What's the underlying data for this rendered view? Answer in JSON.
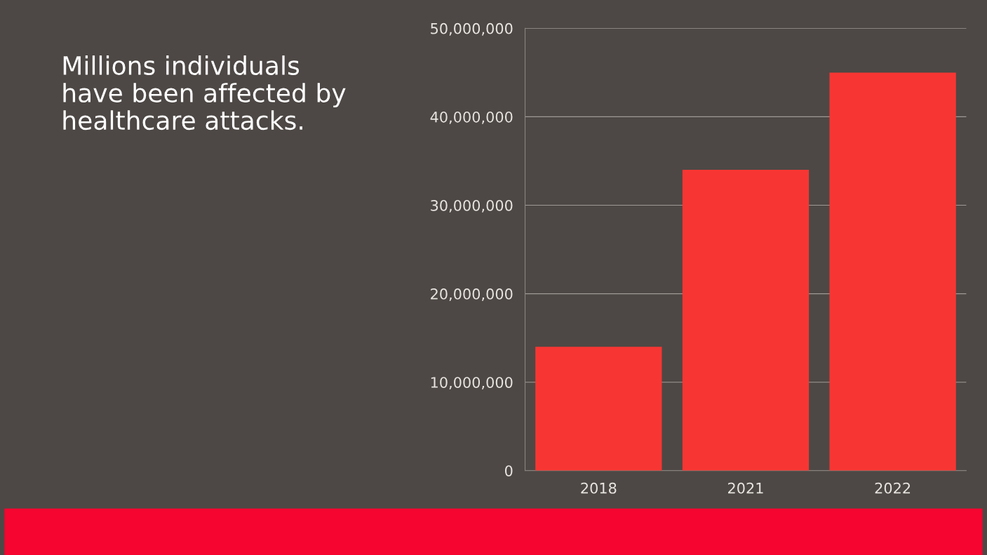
{
  "chart_data": {
    "type": "bar",
    "title": "Millions individuals have been affected by healthcare attacks.",
    "categories": [
      "2018",
      "2021",
      "2022"
    ],
    "values": [
      14000000,
      34000000,
      45000000
    ],
    "color": "#f73633",
    "ylim": [
      0,
      50000000
    ],
    "yticks": [
      {
        "value": 0,
        "label": "0"
      },
      {
        "value": 10000000,
        "label": "10,000,000"
      },
      {
        "value": 20000000,
        "label": "20,000,000"
      },
      {
        "value": 30000000,
        "label": "30,000,000"
      },
      {
        "value": 40000000,
        "label": "40,000,000"
      },
      {
        "value": 50000000,
        "label": "50,000,000"
      }
    ],
    "grid": "y"
  }
}
